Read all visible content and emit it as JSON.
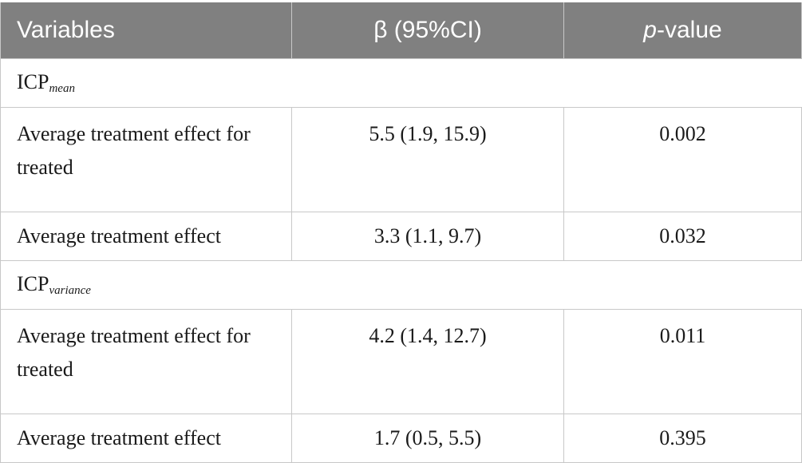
{
  "headers": {
    "variables": "Variables",
    "beta": "β (95%CI)",
    "pvalue_italic": "p",
    "pvalue_rest": "-value"
  },
  "groups": [
    {
      "label_base": "ICP",
      "label_sub": "mean",
      "rows": [
        {
          "variable": "Average treatment effect for treated",
          "beta": "5.5 (1.9, 15.9)",
          "p": "0.002"
        },
        {
          "variable": "Average treatment effect",
          "beta": "3.3 (1.1, 9.7)",
          "p": "0.032"
        }
      ]
    },
    {
      "label_base": "ICP",
      "label_sub": "variance",
      "rows": [
        {
          "variable": "Average treatment effect for treated",
          "beta": "4.2 (1.4, 12.7)",
          "p": "0.011"
        },
        {
          "variable": "Average treatment effect",
          "beta": "1.7 (0.5, 5.5)",
          "p": "0.395"
        }
      ]
    }
  ]
}
